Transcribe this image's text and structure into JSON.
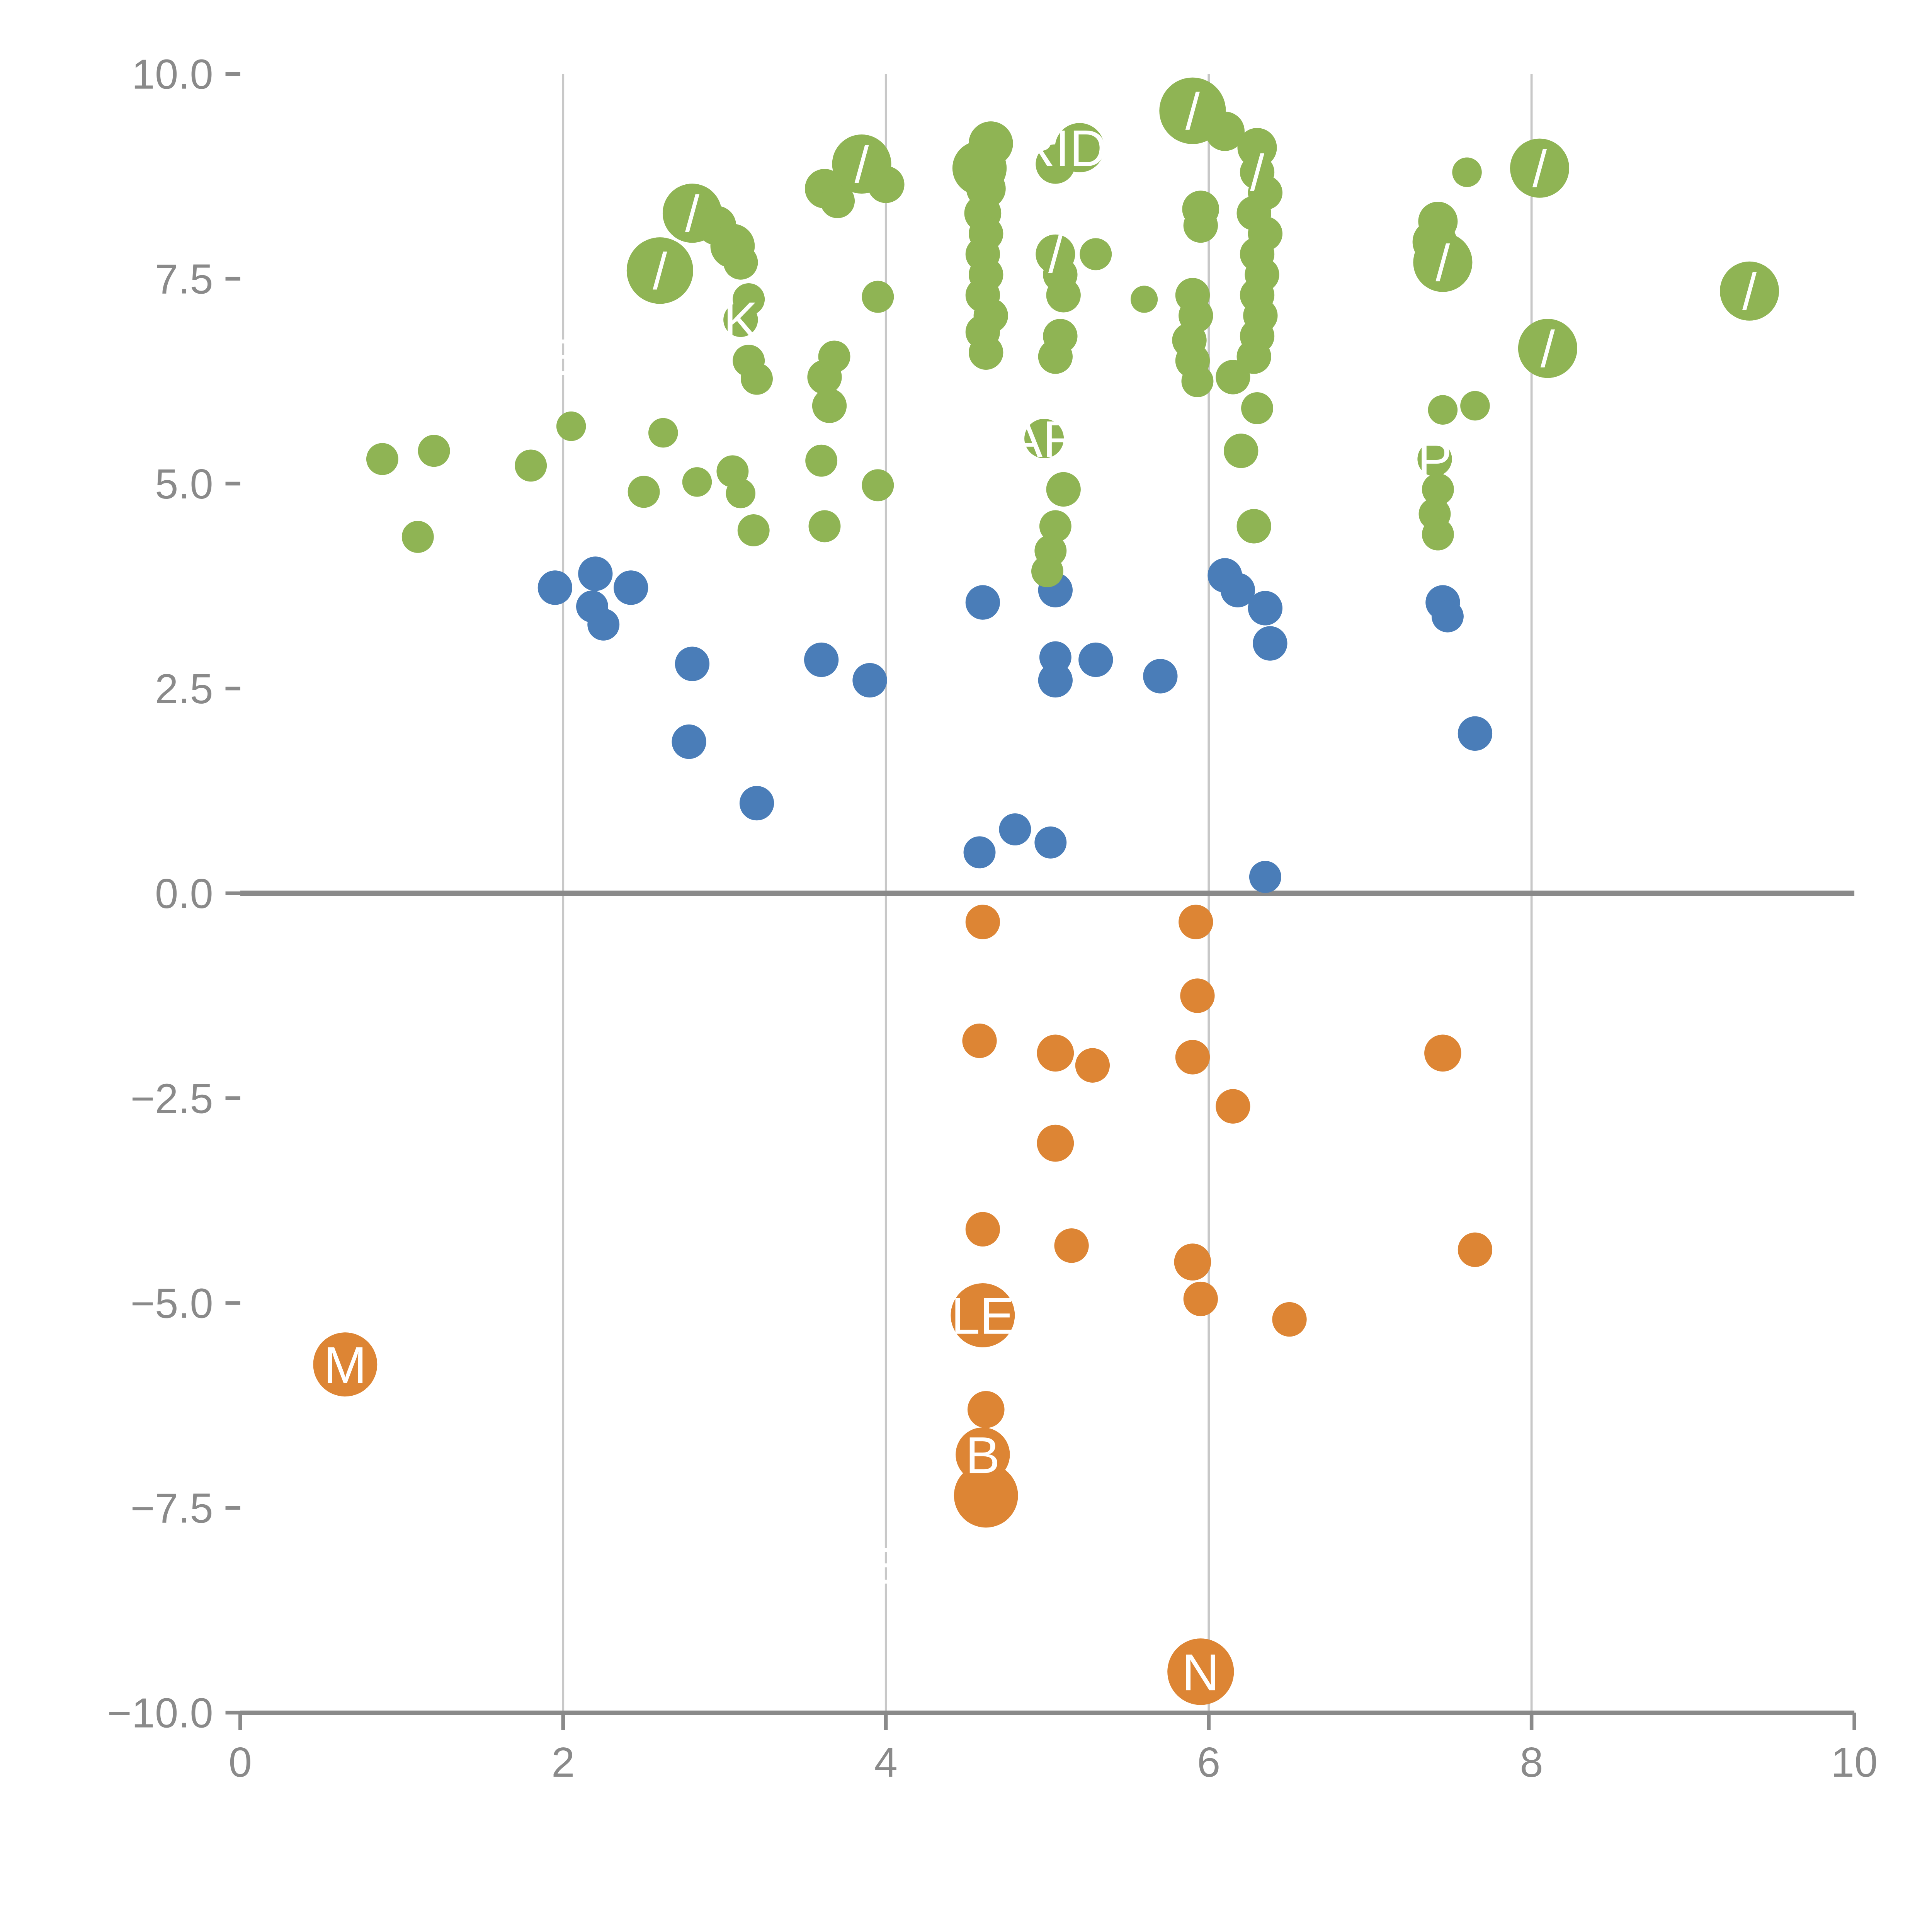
{
  "chart_data": {
    "type": "scatter",
    "title": "",
    "xlabel": "",
    "ylabel": "",
    "xlim": [
      0,
      10
    ],
    "ylim": [
      -10,
      10
    ],
    "xticks": [
      0,
      2,
      4,
      6,
      8,
      10
    ],
    "yticks": [
      -10,
      -7.5,
      -5,
      -2.5,
      0,
      2.5,
      5,
      7.5,
      10
    ],
    "grid": {
      "vertical_at": [
        2,
        4,
        6,
        8
      ],
      "horizontal": false
    },
    "zero_line_y": 0,
    "legend": "none",
    "colors": {
      "green": "#8fb454",
      "blue": "#4a7db8",
      "orange": "#dd8534",
      "axis": "#8a8a8a",
      "grid": "#c8c8c8",
      "label_text": "#ffffff",
      "background": "#ffffff"
    },
    "series": [
      {
        "name": "blue",
        "color": "#4a7db8",
        "points": [
          [
            1.95,
            3.73,
            14
          ],
          [
            2.2,
            3.9,
            14
          ],
          [
            2.18,
            3.5,
            13
          ],
          [
            2.42,
            3.73,
            14
          ],
          [
            2.25,
            3.28,
            13
          ],
          [
            2.8,
            2.8,
            14
          ],
          [
            2.78,
            1.85,
            14
          ],
          [
            3.2,
            1.1,
            14
          ],
          [
            3.6,
            2.85,
            14
          ],
          [
            3.9,
            2.6,
            14
          ],
          [
            4.6,
            3.55,
            14
          ],
          [
            4.58,
            0.5,
            13
          ],
          [
            4.8,
            0.78,
            13
          ],
          [
            5.02,
            0.62,
            13
          ],
          [
            5.05,
            2.6,
            14
          ],
          [
            5.05,
            2.88,
            13
          ],
          [
            5.3,
            2.85,
            14
          ],
          [
            5.7,
            2.65,
            14
          ],
          [
            5.05,
            3.7,
            14
          ],
          [
            6.1,
            3.88,
            14
          ],
          [
            6.18,
            3.7,
            14
          ],
          [
            6.35,
            3.48,
            14
          ],
          [
            6.38,
            3.05,
            14
          ],
          [
            6.35,
            0.2,
            13
          ],
          [
            7.45,
            3.55,
            14
          ],
          [
            7.48,
            3.38,
            13
          ],
          [
            7.65,
            1.95,
            14
          ]
        ]
      },
      {
        "name": "orange",
        "color": "#dd8534",
        "points": [
          [
            4.6,
            -0.35,
            14
          ],
          [
            5.92,
            -0.35,
            14
          ],
          [
            5.93,
            -1.25,
            14
          ],
          [
            4.58,
            -1.8,
            14
          ],
          [
            5.05,
            -1.95,
            15
          ],
          [
            5.28,
            -2.1,
            14
          ],
          [
            5.9,
            -2.0,
            14
          ],
          [
            6.15,
            -2.6,
            14
          ],
          [
            5.05,
            -3.05,
            15
          ],
          [
            4.6,
            -4.1,
            14
          ],
          [
            5.15,
            -4.3,
            14
          ],
          [
            5.9,
            -4.5,
            15
          ],
          [
            5.95,
            -4.95,
            14
          ],
          [
            6.5,
            -5.2,
            14
          ],
          [
            7.45,
            -1.95,
            15
          ],
          [
            7.65,
            -4.35,
            14
          ],
          [
            4.6,
            -5.15,
            26,
            "LE"
          ],
          [
            0.65,
            -5.75,
            26,
            "M"
          ],
          [
            4.62,
            -6.3,
            15
          ],
          [
            4.6,
            -6.85,
            22,
            "B"
          ],
          [
            4.62,
            -7.35,
            26
          ],
          [
            5.95,
            -9.5,
            27,
            "N"
          ]
        ]
      },
      {
        "name": "green",
        "color": "#8fb454",
        "points": [
          [
            0.88,
            5.3,
            13
          ],
          [
            1.2,
            5.4,
            13
          ],
          [
            1.1,
            4.35,
            13
          ],
          [
            1.8,
            5.22,
            13
          ],
          [
            2.05,
            5.7,
            12
          ],
          [
            2.5,
            4.9,
            13
          ],
          [
            2.62,
            5.62,
            12
          ],
          [
            2.83,
            5.02,
            12
          ],
          [
            3.05,
            5.15,
            13
          ],
          [
            3.1,
            4.88,
            12
          ],
          [
            3.18,
            4.43,
            13
          ],
          [
            3.6,
            5.28,
            13
          ],
          [
            3.62,
            4.48,
            13
          ],
          [
            3.95,
            4.98,
            13
          ],
          [
            4.98,
            5.55,
            16,
            "AR"
          ],
          [
            5.1,
            4.93,
            14
          ],
          [
            5.05,
            4.48,
            13
          ],
          [
            5.02,
            4.18,
            13
          ],
          [
            5.0,
            3.93,
            13
          ],
          [
            6.2,
            5.4,
            14
          ],
          [
            6.28,
            4.48,
            14
          ],
          [
            7.4,
            5.3,
            14,
            "P"
          ],
          [
            7.42,
            4.93,
            13
          ],
          [
            7.4,
            4.63,
            13
          ],
          [
            7.42,
            4.38,
            13
          ],
          [
            3.15,
            6.5,
            13
          ],
          [
            3.2,
            6.28,
            13
          ],
          [
            3.62,
            6.3,
            14
          ],
          [
            3.65,
            5.95,
            14
          ],
          [
            3.68,
            6.55,
            13
          ],
          [
            4.62,
            6.6,
            14
          ],
          [
            4.6,
            6.85,
            14
          ],
          [
            4.65,
            7.05,
            14
          ],
          [
            5.05,
            6.55,
            14
          ],
          [
            5.08,
            6.8,
            14
          ],
          [
            5.3,
            7.8,
            13
          ],
          [
            5.6,
            7.25,
            11
          ],
          [
            5.9,
            7.3,
            14
          ],
          [
            5.92,
            7.05,
            14
          ],
          [
            5.88,
            6.75,
            14
          ],
          [
            5.9,
            6.5,
            14
          ],
          [
            5.93,
            6.25,
            13
          ],
          [
            6.15,
            6.3,
            14
          ],
          [
            6.3,
            5.92,
            13
          ],
          [
            7.45,
            5.9,
            12
          ],
          [
            7.65,
            5.95,
            12
          ],
          [
            6.28,
            6.55,
            14
          ],
          [
            6.3,
            6.8,
            14
          ],
          [
            6.32,
            7.05,
            14
          ],
          [
            6.3,
            7.3,
            14
          ],
          [
            6.33,
            7.55,
            14
          ],
          [
            6.3,
            7.8,
            14
          ],
          [
            6.35,
            8.05,
            14
          ],
          [
            6.28,
            8.3,
            14
          ],
          [
            6.35,
            8.55,
            14
          ],
          [
            6.3,
            8.8,
            14,
            "/"
          ],
          [
            2.6,
            7.6,
            27,
            "/"
          ],
          [
            2.8,
            8.3,
            24,
            "/"
          ],
          [
            2.95,
            8.15,
            16
          ],
          [
            3.05,
            7.9,
            18
          ],
          [
            3.1,
            7.7,
            14
          ],
          [
            3.1,
            7.0,
            14,
            "K"
          ],
          [
            3.15,
            7.25,
            13
          ],
          [
            3.62,
            8.6,
            16
          ],
          [
            3.7,
            8.45,
            14
          ],
          [
            3.85,
            8.9,
            24,
            "/"
          ],
          [
            4.0,
            8.65,
            15
          ],
          [
            3.95,
            7.28,
            13
          ],
          [
            4.58,
            8.85,
            22
          ],
          [
            4.62,
            8.6,
            16
          ],
          [
            4.6,
            8.3,
            15
          ],
          [
            4.62,
            8.05,
            14
          ],
          [
            4.6,
            7.8,
            14
          ],
          [
            4.62,
            7.55,
            14
          ],
          [
            4.6,
            7.3,
            14
          ],
          [
            4.65,
            9.15,
            18
          ],
          [
            5.2,
            9.1,
            20,
            "RIDE"
          ],
          [
            5.05,
            8.9,
            16
          ],
          [
            5.05,
            7.8,
            16,
            "/"
          ],
          [
            5.08,
            7.55,
            14
          ],
          [
            5.1,
            7.3,
            14
          ],
          [
            5.9,
            9.55,
            27,
            "/"
          ],
          [
            6.1,
            9.3,
            16
          ],
          [
            6.3,
            9.1,
            16
          ],
          [
            5.95,
            8.35,
            15
          ],
          [
            5.95,
            8.15,
            14
          ],
          [
            7.42,
            8.2,
            16
          ],
          [
            7.4,
            7.95,
            18
          ],
          [
            7.45,
            7.7,
            24,
            "/"
          ],
          [
            7.6,
            8.8,
            12
          ],
          [
            8.05,
            8.85,
            24,
            "/"
          ],
          [
            8.1,
            6.65,
            24,
            "/"
          ],
          [
            9.35,
            7.35,
            24,
            "/"
          ]
        ]
      }
    ],
    "annotations": [
      {
        "text": "E",
        "x": 2.0,
        "y": 6.55
      },
      {
        "text": "E",
        "x": 4.0,
        "y": -8.2
      }
    ],
    "tick_label_fontsize": 34,
    "point_label_fontsize": 42
  }
}
